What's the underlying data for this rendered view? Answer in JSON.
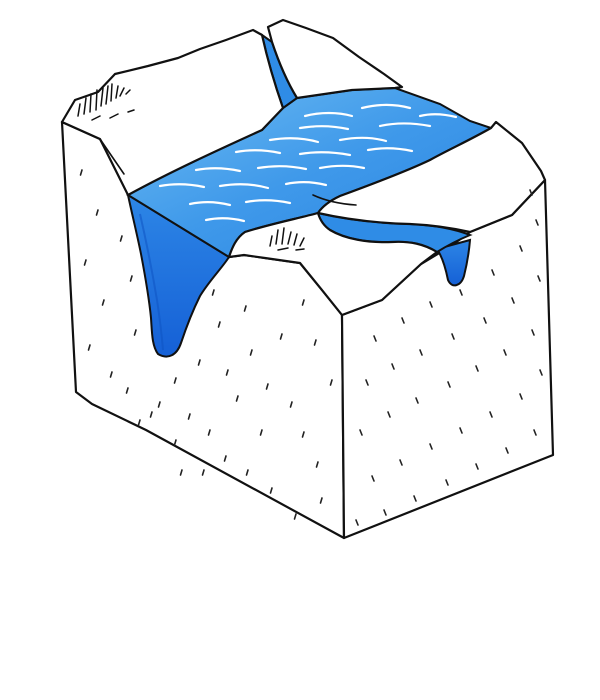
{
  "illustration": {
    "subject": "block-diagram",
    "icons": {
      "grass_tufts": "grass-icon"
    },
    "colors": {
      "background": "#ffffff",
      "outline": "#111111",
      "water_light": "#5fb3ef",
      "water_mid": "#2f8ce6",
      "water_dark": "#1763d9",
      "water_streak": "#ffffff"
    }
  }
}
